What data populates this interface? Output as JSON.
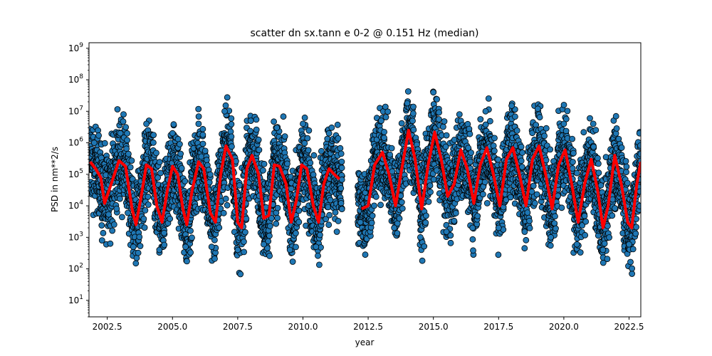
{
  "chart_data": {
    "type": "scatter",
    "title": "scatter dn sx.tann e 0-2 @ 0.151 Hz (median)",
    "xlabel": "year",
    "ylabel": "PSD in nm**2/s",
    "xlim": [
      2001.8,
      2022.95
    ],
    "ylim": [
      3,
      1500000000
    ],
    "yscale": "log",
    "grid": false,
    "x_ticks": [
      2002.5,
      2005.0,
      2007.5,
      2010.0,
      2012.5,
      2015.0,
      2017.5,
      2020.0,
      2022.5
    ],
    "x_tick_labels": [
      "2002.5",
      "2005.0",
      "2007.5",
      "2010.0",
      "2012.5",
      "2015.0",
      "2017.5",
      "2020.0",
      "2022.5"
    ],
    "y_ticks": [
      10,
      100,
      1000,
      10000,
      100000,
      1000000,
      10000000,
      100000000,
      1000000000
    ],
    "y_tick_labels": [
      {
        "base": "10",
        "exp": "1"
      },
      {
        "base": "10",
        "exp": "2"
      },
      {
        "base": "10",
        "exp": "3"
      },
      {
        "base": "10",
        "exp": "4"
      },
      {
        "base": "10",
        "exp": "5"
      },
      {
        "base": "10",
        "exp": "6"
      },
      {
        "base": "10",
        "exp": "7"
      },
      {
        "base": "10",
        "exp": "8"
      },
      {
        "base": "10",
        "exp": "9"
      }
    ],
    "data_gap": [
      2011.5,
      2012.1
    ],
    "series": [
      {
        "kind": "scatter",
        "color": "#1f77b4",
        "edgecolor": "#000000",
        "seasonal_peaks": [
          {
            "x": 2002.0,
            "y": 1000000
          },
          {
            "x": 2003.0,
            "y": 2000000
          },
          {
            "x": 2004.0,
            "y": 4000000
          },
          {
            "x": 2005.0,
            "y": 2000000
          },
          {
            "x": 2006.0,
            "y": 4000000
          },
          {
            "x": 2007.0,
            "y": 10000000
          },
          {
            "x": 2008.0,
            "y": 5000000
          },
          {
            "x": 2009.0,
            "y": 3000000
          },
          {
            "x": 2010.0,
            "y": 4000000
          },
          {
            "x": 2011.0,
            "y": 2000000
          },
          {
            "x": 2013.0,
            "y": 5000000
          },
          {
            "x": 2014.0,
            "y": 18000000
          },
          {
            "x": 2015.0,
            "y": 40000000
          },
          {
            "x": 2016.0,
            "y": 8000000
          },
          {
            "x": 2017.0,
            "y": 10000000
          },
          {
            "x": 2018.0,
            "y": 15000000
          },
          {
            "x": 2019.0,
            "y": 12000000
          },
          {
            "x": 2020.0,
            "y": 4000000
          },
          {
            "x": 2021.0,
            "y": 6000000
          },
          {
            "x": 2022.0,
            "y": 7000000
          },
          {
            "x": 2022.9,
            "y": 2000000
          }
        ],
        "seasonal_troughs": [
          {
            "x": 2002.3,
            "y": 800
          },
          {
            "x": 2003.5,
            "y": 500
          },
          {
            "x": 2004.5,
            "y": 400
          },
          {
            "x": 2005.5,
            "y": 500
          },
          {
            "x": 2006.5,
            "y": 500
          },
          {
            "x": 2007.5,
            "y": 400
          },
          {
            "x": 2008.5,
            "y": 600
          },
          {
            "x": 2009.5,
            "y": 400
          },
          {
            "x": 2010.5,
            "y": 500
          },
          {
            "x": 2011.3,
            "y": 1500
          },
          {
            "x": 2012.2,
            "y": 3000
          },
          {
            "x": 2013.5,
            "y": 2000
          },
          {
            "x": 2014.5,
            "y": 1000
          },
          {
            "x": 2015.5,
            "y": 1500
          },
          {
            "x": 2016.5,
            "y": 2000
          },
          {
            "x": 2017.5,
            "y": 2000
          },
          {
            "x": 2018.5,
            "y": 1500
          },
          {
            "x": 2019.5,
            "y": 1000
          },
          {
            "x": 2020.5,
            "y": 600
          },
          {
            "x": 2021.5,
            "y": 400
          },
          {
            "x": 2022.5,
            "y": 600
          }
        ]
      },
      {
        "kind": "line",
        "color": "#ff0000",
        "points": [
          {
            "x": 2001.85,
            "y": 250000
          },
          {
            "x": 2002.05,
            "y": 150000
          },
          {
            "x": 2002.25,
            "y": 80000
          },
          {
            "x": 2002.4,
            "y": 12000
          },
          {
            "x": 2002.95,
            "y": 270000
          },
          {
            "x": 2003.2,
            "y": 180000
          },
          {
            "x": 2003.45,
            "y": 8000
          },
          {
            "x": 2003.6,
            "y": 2500
          },
          {
            "x": 2003.8,
            "y": 20000
          },
          {
            "x": 2004.0,
            "y": 200000
          },
          {
            "x": 2004.2,
            "y": 150000
          },
          {
            "x": 2004.4,
            "y": 10000
          },
          {
            "x": 2004.6,
            "y": 3000
          },
          {
            "x": 2004.8,
            "y": 30000
          },
          {
            "x": 2005.0,
            "y": 180000
          },
          {
            "x": 2005.2,
            "y": 100000
          },
          {
            "x": 2005.4,
            "y": 8000
          },
          {
            "x": 2005.55,
            "y": 2500
          },
          {
            "x": 2005.75,
            "y": 30000
          },
          {
            "x": 2006.0,
            "y": 250000
          },
          {
            "x": 2006.2,
            "y": 150000
          },
          {
            "x": 2006.45,
            "y": 6000
          },
          {
            "x": 2006.65,
            "y": 3000
          },
          {
            "x": 2006.85,
            "y": 100000
          },
          {
            "x": 2007.05,
            "y": 800000
          },
          {
            "x": 2007.3,
            "y": 300000
          },
          {
            "x": 2007.5,
            "y": 3000
          },
          {
            "x": 2007.65,
            "y": 2000
          },
          {
            "x": 2007.85,
            "y": 150000
          },
          {
            "x": 2008.05,
            "y": 400000
          },
          {
            "x": 2008.3,
            "y": 100000
          },
          {
            "x": 2008.5,
            "y": 4000
          },
          {
            "x": 2008.7,
            "y": 5000
          },
          {
            "x": 2008.9,
            "y": 200000
          },
          {
            "x": 2009.1,
            "y": 180000
          },
          {
            "x": 2009.35,
            "y": 50000
          },
          {
            "x": 2009.55,
            "y": 3000
          },
          {
            "x": 2009.75,
            "y": 15000
          },
          {
            "x": 2009.95,
            "y": 200000
          },
          {
            "x": 2010.15,
            "y": 150000
          },
          {
            "x": 2010.4,
            "y": 10000
          },
          {
            "x": 2010.6,
            "y": 3000
          },
          {
            "x": 2010.8,
            "y": 50000
          },
          {
            "x": 2011.0,
            "y": 150000
          },
          {
            "x": 2011.2,
            "y": 100000
          },
          {
            "x": 2011.4,
            "y": 70000
          },
          {
            "x": 2012.25,
            "y": 8000
          },
          {
            "x": 2012.5,
            "y": 10000
          },
          {
            "x": 2012.75,
            "y": 200000
          },
          {
            "x": 2013.05,
            "y": 500000
          },
          {
            "x": 2013.3,
            "y": 100000
          },
          {
            "x": 2013.55,
            "y": 10000
          },
          {
            "x": 2013.75,
            "y": 100000
          },
          {
            "x": 2014.05,
            "y": 2500000
          },
          {
            "x": 2014.3,
            "y": 300000
          },
          {
            "x": 2014.55,
            "y": 8000
          },
          {
            "x": 2014.8,
            "y": 200000
          },
          {
            "x": 2015.05,
            "y": 2200000
          },
          {
            "x": 2015.3,
            "y": 300000
          },
          {
            "x": 2015.55,
            "y": 20000
          },
          {
            "x": 2015.8,
            "y": 50000
          },
          {
            "x": 2016.05,
            "y": 600000
          },
          {
            "x": 2016.3,
            "y": 150000
          },
          {
            "x": 2016.55,
            "y": 12000
          },
          {
            "x": 2016.8,
            "y": 200000
          },
          {
            "x": 2017.05,
            "y": 700000
          },
          {
            "x": 2017.3,
            "y": 100000
          },
          {
            "x": 2017.55,
            "y": 10000
          },
          {
            "x": 2017.8,
            "y": 300000
          },
          {
            "x": 2018.05,
            "y": 700000
          },
          {
            "x": 2018.3,
            "y": 100000
          },
          {
            "x": 2018.55,
            "y": 10000
          },
          {
            "x": 2018.8,
            "y": 300000
          },
          {
            "x": 2019.05,
            "y": 800000
          },
          {
            "x": 2019.3,
            "y": 100000
          },
          {
            "x": 2019.55,
            "y": 8000
          },
          {
            "x": 2019.8,
            "y": 200000
          },
          {
            "x": 2020.05,
            "y": 600000
          },
          {
            "x": 2020.3,
            "y": 50000
          },
          {
            "x": 2020.55,
            "y": 3000
          },
          {
            "x": 2020.8,
            "y": 50000
          },
          {
            "x": 2021.05,
            "y": 300000
          },
          {
            "x": 2021.3,
            "y": 30000
          },
          {
            "x": 2021.5,
            "y": 2000
          },
          {
            "x": 2021.7,
            "y": 10000
          },
          {
            "x": 2021.95,
            "y": 400000
          },
          {
            "x": 2022.2,
            "y": 50000
          },
          {
            "x": 2022.45,
            "y": 3000
          },
          {
            "x": 2022.6,
            "y": 2000
          },
          {
            "x": 2022.8,
            "y": 50000
          },
          {
            "x": 2022.95,
            "y": 250000
          }
        ]
      }
    ]
  }
}
